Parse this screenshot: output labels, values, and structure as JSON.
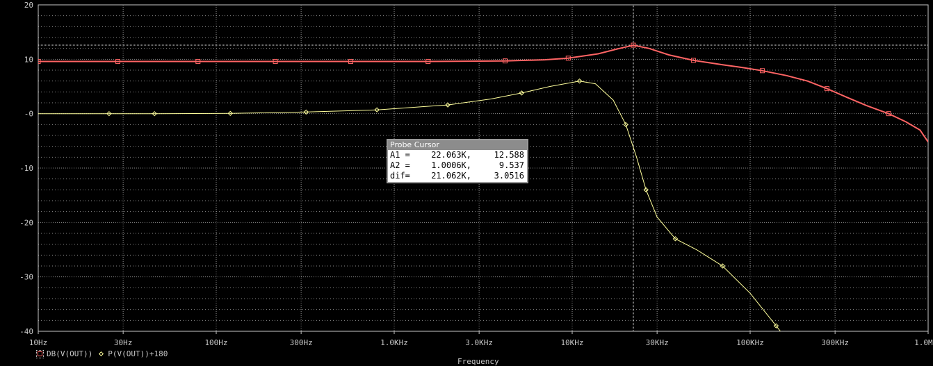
{
  "chart_data": {
    "type": "line",
    "xscale": "log",
    "xlim": [
      10,
      1000000
    ],
    "ylim": [
      -40,
      20
    ],
    "grid": true,
    "x_ticks": [
      {
        "value": 10,
        "label": "10Hz"
      },
      {
        "value": 30,
        "label": "30Hz"
      },
      {
        "value": 100,
        "label": "100Hz"
      },
      {
        "value": 300,
        "label": "300Hz"
      },
      {
        "value": 1000,
        "label": "1.0KHz"
      },
      {
        "value": 3000,
        "label": "3.0KHz"
      },
      {
        "value": 10000,
        "label": "10KHz"
      },
      {
        "value": 30000,
        "label": "30KHz"
      },
      {
        "value": 100000,
        "label": "100KHz"
      },
      {
        "value": 300000,
        "label": "300KHz"
      },
      {
        "value": 1000000,
        "label": "1.0MHz"
      }
    ],
    "y_ticks": [
      {
        "value": 20,
        "label": "20"
      },
      {
        "value": 10,
        "label": "10"
      },
      {
        "value": 0,
        "label": "-0"
      },
      {
        "value": -10,
        "label": "-10"
      },
      {
        "value": -20,
        "label": "-20"
      },
      {
        "value": -30,
        "label": "-30"
      },
      {
        "value": -40,
        "label": "-40"
      }
    ],
    "xlabel": "Frequency",
    "series": [
      {
        "name": "DB(V(OUT))",
        "color": "#ff6464",
        "marker": "square",
        "points": [
          [
            10,
            9.6
          ],
          [
            28,
            9.6
          ],
          [
            79,
            9.6
          ],
          [
            215,
            9.6
          ],
          [
            570,
            9.6
          ],
          [
            1550,
            9.6
          ],
          [
            4200,
            9.7
          ],
          [
            7000,
            9.9
          ],
          [
            9500,
            10.2
          ],
          [
            14000,
            11.0
          ],
          [
            18000,
            11.9
          ],
          [
            22063,
            12.588
          ],
          [
            27000,
            12.0
          ],
          [
            35000,
            10.8
          ],
          [
            48000,
            9.8
          ],
          [
            70000,
            9.0
          ],
          [
            90000,
            8.5
          ],
          [
            117000,
            7.9
          ],
          [
            160000,
            7.0
          ],
          [
            210000,
            6.0
          ],
          [
            270000,
            4.6
          ],
          [
            350000,
            3.0
          ],
          [
            450000,
            1.5
          ],
          [
            600000,
            0.0
          ],
          [
            750000,
            -1.5
          ],
          [
            900000,
            -3.0
          ],
          [
            1000000,
            -5.2
          ]
        ],
        "marker_x": [
          10,
          28,
          79,
          215,
          570,
          1550,
          4200,
          9500,
          22063,
          48000,
          117000,
          270000,
          600000
        ]
      },
      {
        "name": "P(V(OUT))+180",
        "color": "#ffff9c",
        "marker": "diamond",
        "points": [
          [
            10,
            0.0
          ],
          [
            25,
            0.0
          ],
          [
            45,
            0.0
          ],
          [
            120,
            0.05
          ],
          [
            320,
            0.3
          ],
          [
            800,
            0.7
          ],
          [
            2000,
            1.6
          ],
          [
            3500,
            2.7
          ],
          [
            5200,
            3.8
          ],
          [
            7500,
            5.0
          ],
          [
            11000,
            6.0
          ],
          [
            13500,
            5.5
          ],
          [
            17000,
            2.5
          ],
          [
            20000,
            -2.0
          ],
          [
            23000,
            -8.0
          ],
          [
            26000,
            -14.0
          ],
          [
            30000,
            -19.0
          ],
          [
            38000,
            -23.0
          ],
          [
            50000,
            -25.0
          ],
          [
            70000,
            -28.0
          ],
          [
            100000,
            -33.0
          ],
          [
            140000,
            -39.0
          ],
          [
            165000,
            -42.0
          ]
        ],
        "marker_x": [
          25,
          45,
          120,
          320,
          800,
          2000,
          5200,
          11000,
          20000,
          26000,
          38000,
          70000,
          140000
        ]
      }
    ],
    "cursor": {
      "x": 22063,
      "y": 12.588,
      "title": "Probe Cursor",
      "rows": [
        {
          "label": "A1 =",
          "x": "22.063K,",
          "y": "12.588"
        },
        {
          "label": "A2 =",
          "x": "1.0006K,",
          "y": "9.537"
        },
        {
          "label": "dif=",
          "x": "21.062K,",
          "y": "3.0516"
        }
      ]
    }
  },
  "legend": {
    "series1": "DB(V(OUT))",
    "series2": "P(V(OUT))+180"
  },
  "colors": {
    "background": "#000000",
    "grid": "#8c8c8c",
    "axis": "#c8c8c8"
  }
}
